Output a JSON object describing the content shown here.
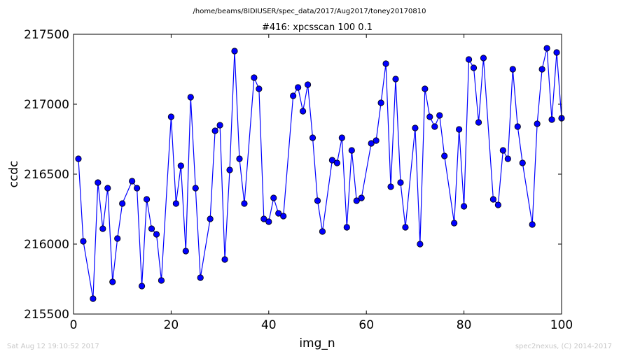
{
  "chart_data": {
    "type": "line",
    "suptitle": "/home/beams/8IDIUSER/spec_data/2017/Aug2017/toney20170810",
    "title": "#416: xpcsscan 100 0.1",
    "xlabel": "img_n",
    "ylabel": "ccdc",
    "xlim": [
      0,
      100
    ],
    "ylim": [
      215500,
      217500
    ],
    "xticks": [
      0,
      20,
      40,
      60,
      80,
      100
    ],
    "yticks": [
      215500,
      216000,
      216500,
      217000,
      217500
    ],
    "grid": false,
    "series": [
      {
        "color": "#0000ff",
        "marker": "circle",
        "x": [
          1,
          2,
          4,
          5,
          6,
          7,
          8,
          9,
          10,
          12,
          13,
          14,
          15,
          16,
          17,
          18,
          20,
          21,
          22,
          23,
          24,
          25,
          26,
          28,
          29,
          30,
          31,
          32,
          33,
          34,
          35,
          37,
          38,
          39,
          40,
          41,
          42,
          43,
          45,
          46,
          47,
          48,
          49,
          50,
          51,
          53,
          54,
          55,
          56,
          57,
          58,
          59,
          61,
          62,
          63,
          64,
          65,
          66,
          67,
          68,
          70,
          71,
          72,
          73,
          74,
          75,
          76,
          78,
          79,
          80,
          81,
          82,
          83,
          84,
          86,
          87,
          88,
          89,
          90,
          91,
          92,
          94,
          95,
          96,
          97,
          98,
          99,
          100
        ],
        "y": [
          216610,
          216020,
          215610,
          216440,
          216110,
          216400,
          215730,
          216040,
          216290,
          216450,
          216400,
          215700,
          216320,
          216110,
          216070,
          215740,
          216910,
          216290,
          216560,
          215950,
          217050,
          216400,
          215760,
          216180,
          216810,
          216850,
          215890,
          216530,
          217380,
          216610,
          216290,
          217190,
          217110,
          216180,
          216160,
          216330,
          216220,
          216200,
          217060,
          217120,
          216950,
          217140,
          216760,
          216310,
          216090,
          216600,
          216580,
          216760,
          216120,
          216670,
          216310,
          216330,
          216720,
          216740,
          217010,
          217290,
          216410,
          217180,
          216440,
          216120,
          216830,
          216000,
          217110,
          216910,
          216840,
          216920,
          216630,
          216150,
          216820,
          216270,
          217320,
          217260,
          216870,
          217330,
          216320,
          216280,
          216670,
          216610,
          217250,
          216840,
          216580,
          216140,
          216860,
          217250,
          217400,
          216890,
          217370,
          216900
        ]
      }
    ]
  },
  "footer": {
    "timestamp": "Sat Aug 12 19:10:52 2017",
    "credit": "spec2nexus, (C) 2014-2017"
  }
}
